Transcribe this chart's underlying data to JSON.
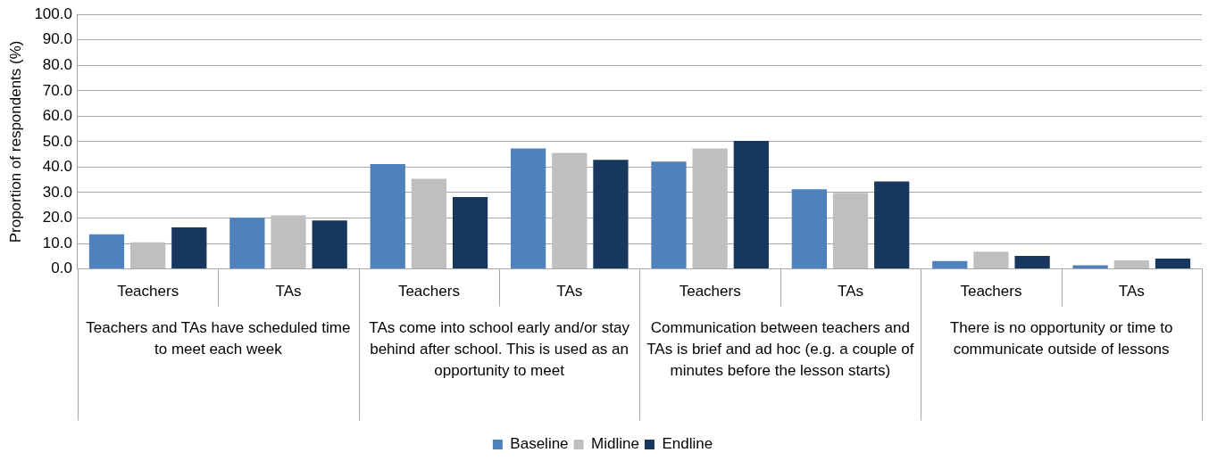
{
  "chart_data": {
    "type": "bar",
    "ylabel": "Proportion of respondents (%)",
    "categories": [
      "Teachers",
      "TAs",
      "Teachers",
      "TAs",
      "Teachers",
      "TAs",
      "Teachers",
      "TAs"
    ],
    "annotations": [
      "Teachers and TAs have scheduled time to meet each week",
      "TAs come into school early and/or stay behind after school. This is used as an opportunity to meet",
      "Communication between teachers and TAs is brief and ad hoc (e.g. a couple of minutes before the lesson starts)",
      "There is no opportunity or time to communicate outside of lessons"
    ],
    "series": [
      {
        "name": "Baseline",
        "color": "#4f81bd",
        "values": [
          13.6,
          20.1,
          41.2,
          47.3,
          42.2,
          31.3,
          3.1,
          1.4
        ]
      },
      {
        "name": "Midline",
        "color": "#bfbfbf",
        "values": [
          10.5,
          21.1,
          35.4,
          45.6,
          47.3,
          29.9,
          6.8,
          3.4
        ]
      },
      {
        "name": "Endline",
        "color": "#17375e",
        "values": [
          16.3,
          19.0,
          28.2,
          42.9,
          50.3,
          34.4,
          5.1,
          4.1
        ]
      }
    ],
    "ylim": [
      0,
      100
    ],
    "yticks": [
      {
        "value": 0,
        "label": "0.0"
      },
      {
        "value": 10,
        "label": "10.0"
      },
      {
        "value": 20,
        "label": "20.0"
      },
      {
        "value": 30,
        "label": "30.0"
      },
      {
        "value": 40,
        "label": "40.0"
      },
      {
        "value": 50,
        "label": "50.0"
      },
      {
        "value": 60,
        "label": "60.0"
      },
      {
        "value": 70,
        "label": "70.0"
      },
      {
        "value": 80,
        "label": "80.0"
      },
      {
        "value": 90,
        "label": "90.0"
      },
      {
        "value": 100,
        "label": "100.0"
      }
    ],
    "grid": "y",
    "legend": "bottom"
  }
}
